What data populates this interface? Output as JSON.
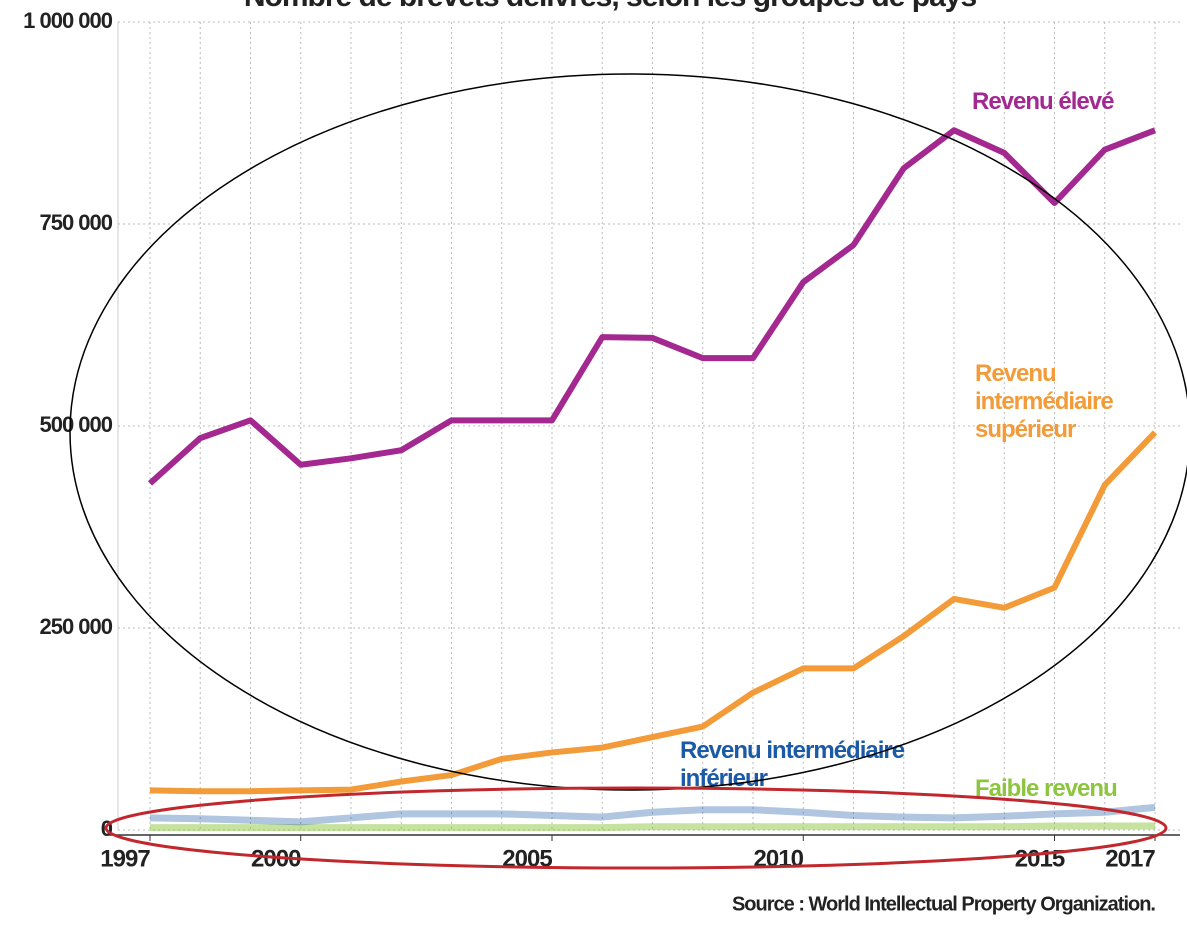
{
  "chart_data": {
    "type": "line",
    "title": "Nombre de brevets délivrés, selon les groupes de pays",
    "source": "Source : World Intellectual Property Organization.",
    "x": [
      1997,
      1998,
      1999,
      2000,
      2001,
      2002,
      2003,
      2004,
      2005,
      2006,
      2007,
      2008,
      2009,
      2010,
      2011,
      2012,
      2013,
      2014,
      2015,
      2016,
      2017
    ],
    "xlim": [
      1997,
      2017
    ],
    "xticks": [
      1997,
      2000,
      2005,
      2010,
      2015,
      2017
    ],
    "ylim": [
      0,
      1000000
    ],
    "yticks": [
      0,
      {
        "value": 250000,
        "label": "250 000"
      },
      {
        "value": 500000,
        "label": "500 000"
      },
      {
        "value": 750000,
        "label": "750 000"
      },
      {
        "value": 1000000,
        "label": "1 000 000"
      }
    ],
    "grid": true,
    "series": [
      {
        "name": "Revenu élevé",
        "color": "#a3288f",
        "values": [
          429000,
          485000,
          507000,
          452000,
          460000,
          470000,
          507000,
          507000,
          507000,
          610000,
          609000,
          584000,
          584000,
          678000,
          724000,
          819000,
          866000,
          838000,
          776000,
          842000,
          866000
        ]
      },
      {
        "name": "Revenu intermédiaire supérieur",
        "color": "#f29b38",
        "values": [
          49000,
          48000,
          48000,
          49000,
          50000,
          60000,
          68000,
          88000,
          96000,
          102000,
          115000,
          128000,
          170000,
          200000,
          200000,
          240000,
          286000,
          275000,
          300000,
          427000,
          492000
        ]
      },
      {
        "name": "Revenu intermédiaire inférieur",
        "color": "#1a5aa6",
        "values": [
          15000,
          14000,
          12000,
          10000,
          15000,
          20000,
          20000,
          20000,
          18000,
          16000,
          22000,
          25000,
          25000,
          22000,
          18000,
          16000,
          15000,
          17000,
          20000,
          22000,
          28000
        ]
      },
      {
        "name": "Faible revenu",
        "color": "#8cc63f",
        "values": [
          3000,
          3000,
          3000,
          3000,
          3000,
          3000,
          3000,
          3000,
          3000,
          3000,
          4000,
          4000,
          4000,
          4000,
          4000,
          4000,
          4000,
          4000,
          5000,
          5000,
          5000
        ]
      }
    ]
  }
}
